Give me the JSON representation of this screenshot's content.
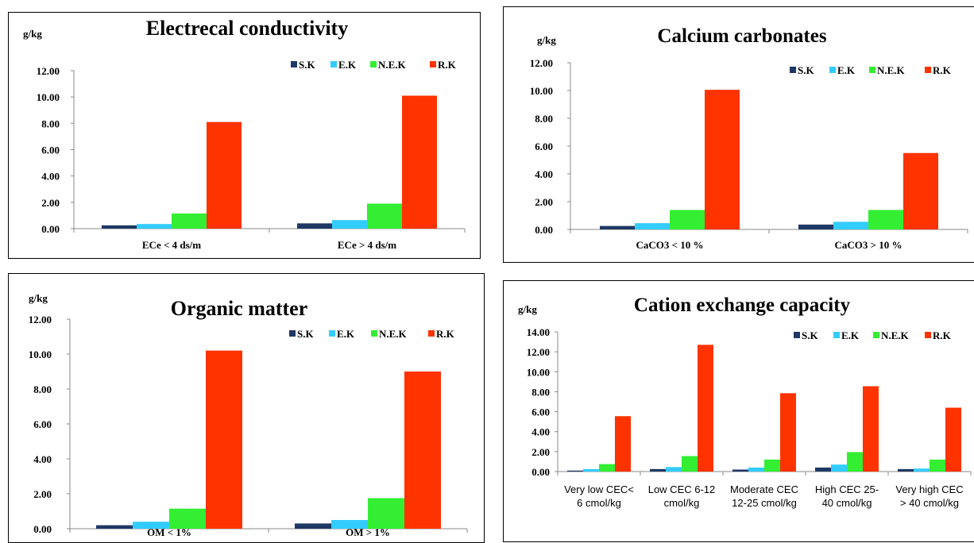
{
  "chart_data": [
    {
      "type": "bar",
      "title": "Electrecal conductivity",
      "unit_label": "g/kg",
      "categories": [
        "ECe < 4 ds/m",
        "ECe > 4 ds/m"
      ],
      "ylim": [
        0,
        12
      ],
      "yticks": [
        "0.00",
        "2.00",
        "4.00",
        "6.00",
        "8.00",
        "10.00",
        "12.00"
      ],
      "legend_position": "top-right",
      "series": [
        {
          "name": "S.K",
          "color": "#1f3864",
          "values": [
            0.25,
            0.4
          ]
        },
        {
          "name": "E.K",
          "color": "#33ccff",
          "values": [
            0.35,
            0.65
          ]
        },
        {
          "name": "N.E.K",
          "color": "#33ee33",
          "values": [
            1.15,
            1.9
          ]
        },
        {
          "name": "R.K",
          "color": "#ff3300",
          "values": [
            8.1,
            10.1
          ]
        }
      ]
    },
    {
      "type": "bar",
      "title": "Calcium carbonates",
      "unit_label": "g/kg",
      "categories": [
        "CaCO3 < 10 %",
        "CaCO3 > 10 %"
      ],
      "ylim": [
        0,
        12
      ],
      "yticks": [
        "0.00",
        "2.00",
        "4.00",
        "6.00",
        "8.00",
        "10.00",
        "12.00"
      ],
      "legend_position": "top-right",
      "series": [
        {
          "name": "S.K",
          "color": "#1f3864",
          "values": [
            0.25,
            0.35
          ]
        },
        {
          "name": "E.K",
          "color": "#33ccff",
          "values": [
            0.45,
            0.55
          ]
        },
        {
          "name": "N.E.K",
          "color": "#33ee33",
          "values": [
            1.4,
            1.4
          ]
        },
        {
          "name": "R.K",
          "color": "#ff3300",
          "values": [
            10.05,
            5.5
          ]
        }
      ]
    },
    {
      "type": "bar",
      "title": "Organic matter",
      "unit_label": "g/kg",
      "categories": [
        "OM < 1%",
        "OM > 1%"
      ],
      "ylim": [
        0,
        12
      ],
      "yticks": [
        "0.00",
        "2.00",
        "4.00",
        "6.00",
        "8.00",
        "10.00",
        "12.00"
      ],
      "legend_position": "top-right",
      "series": [
        {
          "name": "S.K",
          "color": "#1f3864",
          "values": [
            0.2,
            0.3
          ]
        },
        {
          "name": "E.K",
          "color": "#33ccff",
          "values": [
            0.4,
            0.5
          ]
        },
        {
          "name": "N.E.K",
          "color": "#33ee33",
          "values": [
            1.15,
            1.75
          ]
        },
        {
          "name": "R.K",
          "color": "#ff3300",
          "values": [
            10.2,
            9.0
          ]
        }
      ]
    },
    {
      "type": "bar",
      "title": "Cation exchange capacity",
      "unit_label": "g/kg",
      "categories": [
        "Very low CEC< 6 cmol/kg",
        "Low CEC 6-12 cmol/kg",
        "Moderate CEC 12-25 cmol/kg",
        "High CEC 25-40 cmol/kg",
        "Very high CEC > 40 cmol/kg"
      ],
      "category_lines": [
        [
          "Very low CEC<",
          "6 cmol/kg"
        ],
        [
          "Low CEC 6-12",
          "cmol/kg"
        ],
        [
          "Moderate CEC",
          "12-25 cmol/kg"
        ],
        [
          "High CEC 25-",
          "40 cmol/kg"
        ],
        [
          "Very high CEC",
          "> 40 cmol/kg"
        ]
      ],
      "ylim": [
        0,
        14
      ],
      "yticks": [
        "0.00",
        "2.00",
        "4.00",
        "6.00",
        "8.00",
        "10.00",
        "12.00",
        "14.00"
      ],
      "legend_position": "top-right",
      "series": [
        {
          "name": "S.K",
          "color": "#1f3864",
          "values": [
            0.1,
            0.25,
            0.2,
            0.4,
            0.25
          ]
        },
        {
          "name": "E.K",
          "color": "#33ccff",
          "values": [
            0.25,
            0.45,
            0.4,
            0.7,
            0.3
          ]
        },
        {
          "name": "N.E.K",
          "color": "#33ee33",
          "values": [
            0.75,
            1.55,
            1.2,
            1.95,
            1.2
          ]
        },
        {
          "name": "R.K",
          "color": "#ff3300",
          "values": [
            5.55,
            12.7,
            7.85,
            8.55,
            6.4
          ]
        }
      ]
    }
  ]
}
